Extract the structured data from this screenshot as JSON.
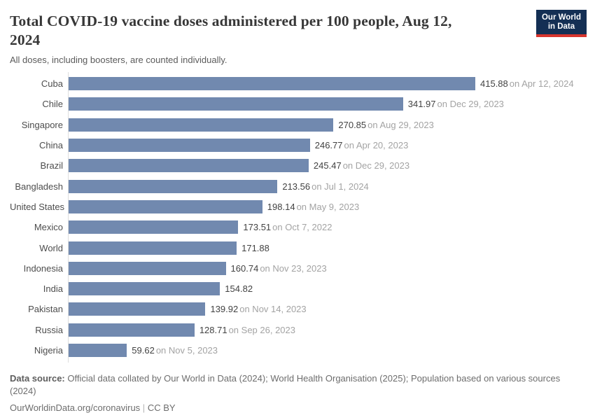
{
  "header": {
    "title_line1": "Total COVID-19 vaccine doses administered per 100 people, Aug 12,",
    "title_line2": "2024",
    "subtitle": "All doses, including boosters, are counted individually.",
    "logo_line1": "Our World",
    "logo_line2": "in Data",
    "logo_bg_color": "#142f54",
    "logo_accent_color": "#d7352e"
  },
  "chart_data": {
    "type": "bar",
    "orientation": "horizontal",
    "title": "Total COVID-19 vaccine doses administered per 100 people, Aug 12, 2024",
    "subtitle": "All doses, including boosters, are counted individually.",
    "xlim": [
      0,
      415.88
    ],
    "grid": false,
    "legend": false,
    "bar_color": "#7189af",
    "categories": [
      "Cuba",
      "Chile",
      "Singapore",
      "China",
      "Brazil",
      "Bangladesh",
      "United States",
      "Mexico",
      "World",
      "Indonesia",
      "India",
      "Pakistan",
      "Russia",
      "Nigeria"
    ],
    "values": [
      415.88,
      341.97,
      270.85,
      246.77,
      245.47,
      213.56,
      198.14,
      173.51,
      171.88,
      160.74,
      154.82,
      139.92,
      128.71,
      59.62
    ],
    "rows": [
      {
        "label": "Cuba",
        "value": 415.88,
        "value_label": "415.88",
        "date_label": "on Apr 12, 2024"
      },
      {
        "label": "Chile",
        "value": 341.97,
        "value_label": "341.97",
        "date_label": "on Dec 29, 2023"
      },
      {
        "label": "Singapore",
        "value": 270.85,
        "value_label": "270.85",
        "date_label": "on Aug 29, 2023"
      },
      {
        "label": "China",
        "value": 246.77,
        "value_label": "246.77",
        "date_label": "on Apr 20, 2023"
      },
      {
        "label": "Brazil",
        "value": 245.47,
        "value_label": "245.47",
        "date_label": "on Dec 29, 2023"
      },
      {
        "label": "Bangladesh",
        "value": 213.56,
        "value_label": "213.56",
        "date_label": "on Jul 1, 2024"
      },
      {
        "label": "United States",
        "value": 198.14,
        "value_label": "198.14",
        "date_label": "on May 9, 2023"
      },
      {
        "label": "Mexico",
        "value": 173.51,
        "value_label": "173.51",
        "date_label": "on Oct 7, 2022"
      },
      {
        "label": "World",
        "value": 171.88,
        "value_label": "171.88",
        "date_label": ""
      },
      {
        "label": "Indonesia",
        "value": 160.74,
        "value_label": "160.74",
        "date_label": "on Nov 23, 2023"
      },
      {
        "label": "India",
        "value": 154.82,
        "value_label": "154.82",
        "date_label": ""
      },
      {
        "label": "Pakistan",
        "value": 139.92,
        "value_label": "139.92",
        "date_label": "on Nov 14, 2023"
      },
      {
        "label": "Russia",
        "value": 128.71,
        "value_label": "128.71",
        "date_label": "on Sep 26, 2023"
      },
      {
        "label": "Nigeria",
        "value": 59.62,
        "value_label": "59.62",
        "date_label": "on Nov 5, 2023"
      }
    ]
  },
  "footer": {
    "source_label": "Data source:",
    "source_text": "Official data collated by Our World in Data (2024); World Health Organisation (2025); Population based on various sources (2024)",
    "url": "OurWorldinData.org/coronavirus",
    "separator": "|",
    "license": "CC BY"
  }
}
